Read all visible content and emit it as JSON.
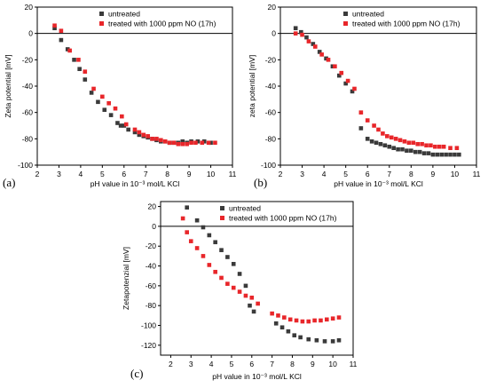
{
  "colors": {
    "untreated": "#3a3a3a",
    "treated": "#e8262a",
    "axis": "#000000",
    "zero_line": "#000000"
  },
  "chart_data": [
    {
      "type": "scatter",
      "panel_label": "(a)",
      "xlabel": "pH value in 10⁻³ mol/L KCl",
      "ylabel": "Zeta potential [mV]",
      "xlim": [
        2,
        11
      ],
      "ylim": [
        -100,
        20
      ],
      "xticks": [
        "2",
        "3",
        "4",
        "5",
        "6",
        "7",
        "8",
        "9",
        "10",
        "11"
      ],
      "yticks": [
        "20",
        "0",
        "-20",
        "-40",
        "-60",
        "-80",
        "-100"
      ],
      "legend_position": "top-right",
      "series": [
        {
          "name": "untreated",
          "color": "#3a3a3a",
          "x": [
            2.8,
            3.1,
            3.4,
            3.7,
            3.95,
            4.2,
            4.5,
            4.8,
            5.1,
            5.4,
            5.7,
            5.85,
            6.0,
            6.2,
            6.5,
            6.7,
            6.9,
            7.1,
            7.3,
            7.5,
            7.7,
            7.9,
            8.1,
            8.3,
            8.5,
            8.7,
            8.9,
            9.1,
            9.4,
            9.7,
            10.0
          ],
          "y": [
            4,
            -5,
            -12,
            -20,
            -27,
            -35,
            -45,
            -52,
            -58,
            -62,
            -68,
            -70,
            -70,
            -73,
            -75,
            -77,
            -78,
            -79,
            -80,
            -81,
            -82,
            -82,
            -83,
            -83,
            -83,
            -82,
            -83,
            -82,
            -82,
            -82,
            -83
          ]
        },
        {
          "name": "treated with 1000 ppm NO (17h)",
          "color": "#e8262a",
          "x": [
            2.8,
            3.1,
            3.5,
            3.9,
            4.2,
            4.6,
            5.0,
            5.3,
            5.6,
            5.9,
            6.1,
            6.5,
            6.7,
            6.9,
            7.1,
            7.3,
            7.5,
            7.7,
            7.9,
            8.1,
            8.3,
            8.5,
            8.7,
            8.9,
            9.1,
            9.3,
            9.6,
            9.9,
            10.2
          ],
          "y": [
            6,
            2,
            -13,
            -20,
            -29,
            -42,
            -48,
            -53,
            -57,
            -63,
            -69,
            -73,
            -75,
            -77,
            -78,
            -80,
            -80,
            -81,
            -82,
            -83,
            -83,
            -84,
            -84,
            -84,
            -83,
            -83,
            -83,
            -83,
            -83
          ]
        }
      ]
    },
    {
      "type": "scatter",
      "panel_label": "(b)",
      "xlabel": "pH value in 10⁻³ mol/L KCl",
      "ylabel": "zeta potential [mV]",
      "xlim": [
        2,
        11
      ],
      "ylim": [
        -100,
        20
      ],
      "xticks": [
        "2",
        "3",
        "4",
        "5",
        "6",
        "7",
        "8",
        "9",
        "10",
        "11"
      ],
      "yticks": [
        "20",
        "0",
        "-20",
        "-40",
        "-60",
        "-80",
        "-100"
      ],
      "legend_position": "top-right",
      "series": [
        {
          "name": "untreated",
          "color": "#3a3a3a",
          "x": [
            2.7,
            2.95,
            3.2,
            3.5,
            3.8,
            4.1,
            4.4,
            4.7,
            5.0,
            5.3,
            5.7,
            6.0,
            6.2,
            6.4,
            6.6,
            6.8,
            7.0,
            7.2,
            7.4,
            7.6,
            7.8,
            8.0,
            8.2,
            8.4,
            8.6,
            8.8,
            9.0,
            9.2,
            9.4,
            9.6,
            9.8,
            10.0,
            10.2
          ],
          "y": [
            4,
            1,
            -3,
            -8,
            -14,
            -19,
            -25,
            -32,
            -38,
            -44,
            -72,
            -80,
            -82,
            -83,
            -84,
            -85,
            -86,
            -87,
            -88,
            -88,
            -89,
            -89,
            -90,
            -90,
            -91,
            -91,
            -92,
            -92,
            -92,
            -92,
            -92,
            -92,
            -92
          ]
        },
        {
          "name": "treated with 1000 ppm NO (17h)",
          "color": "#e8262a",
          "x": [
            2.7,
            3.0,
            3.3,
            3.6,
            3.9,
            4.2,
            4.5,
            4.8,
            5.1,
            5.4,
            5.7,
            6.0,
            6.3,
            6.5,
            6.7,
            6.9,
            7.1,
            7.3,
            7.5,
            7.7,
            7.9,
            8.1,
            8.3,
            8.5,
            8.7,
            8.9,
            9.1,
            9.3,
            9.5,
            9.8,
            10.1
          ],
          "y": [
            0,
            -1,
            -6,
            -10,
            -16,
            -20,
            -25,
            -30,
            -36,
            -42,
            -60,
            -66,
            -70,
            -73,
            -76,
            -78,
            -79,
            -80,
            -81,
            -82,
            -83,
            -83,
            -84,
            -84,
            -85,
            -85,
            -86,
            -86,
            -86,
            -87,
            -87
          ]
        }
      ]
    },
    {
      "type": "scatter",
      "panel_label": "(c)",
      "xlabel": "pH value in 10⁻³ mol/L KCl",
      "ylabel": "Zetapotenzial [mV]",
      "xlim": [
        1.5,
        11
      ],
      "ylim": [
        -130,
        25
      ],
      "xticks": [
        "2",
        "3",
        "4",
        "5",
        "6",
        "7",
        "8",
        "9",
        "10",
        "11"
      ],
      "yticks": [
        "20",
        "0",
        "-20",
        "-40",
        "-60",
        "-80",
        "-100",
        "-120"
      ],
      "legend_position": "top-right",
      "series": [
        {
          "name": "untreated",
          "color": "#3a3a3a",
          "x": [
            2.8,
            3.3,
            3.6,
            3.9,
            4.2,
            4.5,
            4.8,
            5.1,
            5.4,
            5.7,
            5.9,
            6.1,
            7.2,
            7.5,
            7.8,
            8.1,
            8.4,
            8.8,
            9.2,
            9.6,
            10.0,
            10.3
          ],
          "y": [
            19,
            6,
            -1,
            -9,
            -16,
            -24,
            -31,
            -38,
            -48,
            -60,
            -80,
            -86,
            -98,
            -102,
            -106,
            -110,
            -112,
            -114,
            -115,
            -116,
            -116,
            -115
          ]
        },
        {
          "name": "treated with 1000 ppm NO (17h)",
          "color": "#e8262a",
          "x": [
            2.6,
            2.8,
            3.0,
            3.3,
            3.6,
            3.9,
            4.2,
            4.5,
            4.8,
            5.1,
            5.4,
            5.7,
            6.0,
            6.3,
            7.0,
            7.3,
            7.6,
            7.9,
            8.2,
            8.5,
            8.8,
            9.1,
            9.4,
            9.7,
            10.0,
            10.3
          ],
          "y": [
            8,
            -6,
            -15,
            -22,
            -30,
            -39,
            -46,
            -52,
            -58,
            -62,
            -66,
            -70,
            -72,
            -78,
            -88,
            -90,
            -92,
            -94,
            -95,
            -96,
            -96,
            -95,
            -95,
            -94,
            -93,
            -92
          ]
        }
      ]
    }
  ]
}
